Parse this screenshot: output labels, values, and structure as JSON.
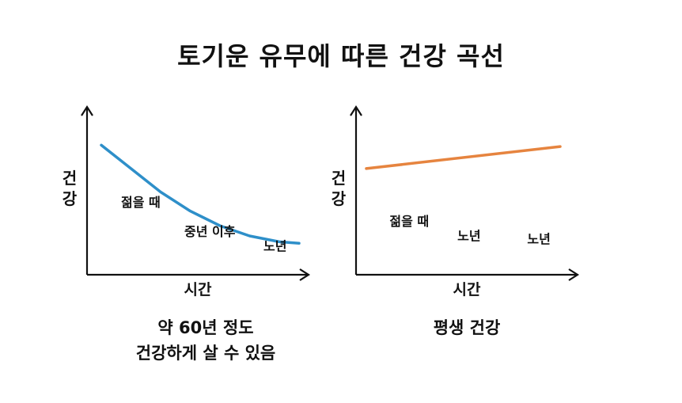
{
  "title": "토기운 유무에 따른 건강 곡선",
  "colors": {
    "left_line": "#2e8fc9",
    "right_line": "#e6843f",
    "axis": "#111111"
  },
  "chart_data": [
    {
      "type": "line",
      "series": [
        {
          "name": "건강",
          "x": [
            0.0,
            0.15,
            0.3,
            0.45,
            0.6,
            0.75,
            0.9,
            1.0
          ],
          "y": [
            0.82,
            0.66,
            0.5,
            0.37,
            0.27,
            0.2,
            0.16,
            0.15
          ]
        }
      ],
      "xlim": [
        0,
        1.0
      ],
      "ylim": [
        0,
        1.0
      ],
      "xlabel": "시간",
      "ylabel": "건강",
      "annotations": [
        {
          "text": "젊을 때",
          "x": 0.1,
          "y": 0.4
        },
        {
          "text": "중년 이후",
          "x": 0.42,
          "y": 0.2
        },
        {
          "text": "노년",
          "x": 0.82,
          "y": 0.1
        }
      ],
      "caption": [
        "약 60년 정도",
        "건강하게 살 수 있음"
      ]
    },
    {
      "type": "line",
      "series": [
        {
          "name": "건강",
          "x": [
            0.0,
            1.0
          ],
          "y": [
            0.66,
            0.81
          ]
        }
      ],
      "xlim": [
        0,
        1.0
      ],
      "ylim": [
        0,
        1.0
      ],
      "xlabel": "시간",
      "ylabel": "건강",
      "annotations": [
        {
          "text": "젊을 때",
          "x": 0.12,
          "y": 0.27
        },
        {
          "text": "노년",
          "x": 0.47,
          "y": 0.17
        },
        {
          "text": "노년",
          "x": 0.83,
          "y": 0.15
        }
      ],
      "caption": [
        "평생 건강"
      ]
    }
  ]
}
